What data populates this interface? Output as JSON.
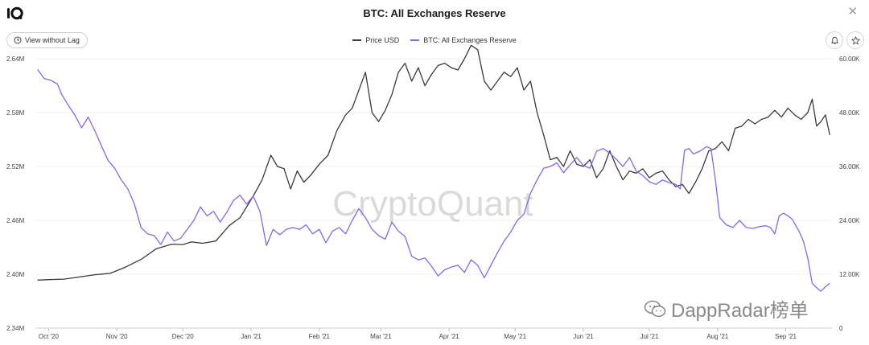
{
  "window": {
    "title": "BTC: All Exchanges Reserve",
    "close_glyph": "✕",
    "logo_icon": "cryptoquant-logo-icon"
  },
  "toolbar": {
    "lag_label": "View without Lag",
    "lag_icon": "clock-icon",
    "bell_icon": "bell-icon",
    "star_icon": "star-icon"
  },
  "watermark": {
    "main": "CryptoQuant",
    "secondary": "DappRadar榜单",
    "secondary_icon": "wechat-icon"
  },
  "chart_data": {
    "type": "line",
    "title": "BTC: All Exchanges Reserve",
    "x_tick_labels": [
      "Oct '20",
      "Nov '20",
      "Dec '20",
      "Jan '21",
      "Feb '21",
      "Mar '21",
      "Apr '21",
      "May '21",
      "Jun '21",
      "Jul '21",
      "Aug '21",
      "Sep '21"
    ],
    "x_ticks_day_index": [
      0,
      31,
      61,
      92,
      123,
      151,
      182,
      212,
      243,
      273,
      304,
      335
    ],
    "x_range_day_index": [
      -6,
      356
    ],
    "left_axis": {
      "ylim": [
        2340000,
        2640000
      ],
      "ticks": [
        2340000,
        2400000,
        2460000,
        2520000,
        2580000,
        2640000
      ],
      "tick_labels": [
        "2.34M",
        "2.40M",
        "2.46M",
        "2.52M",
        "2.58M",
        "2.64M"
      ]
    },
    "right_axis": {
      "ylim": [
        0,
        60000
      ],
      "ticks": [
        0,
        12000,
        24000,
        36000,
        48000,
        60000
      ],
      "tick_labels": [
        "0",
        "12.00K",
        "24.00K",
        "36.00K",
        "48.00K",
        "60.00K"
      ]
    },
    "grid": true,
    "legend_position": "top-center",
    "series": [
      {
        "name": "Price USD",
        "axis": "right",
        "color": "#3a3a3a",
        "points": [
          [
            -5,
            10700
          ],
          [
            0,
            10800
          ],
          [
            7,
            10900
          ],
          [
            14,
            11400
          ],
          [
            21,
            11900
          ],
          [
            28,
            12200
          ],
          [
            35,
            13600
          ],
          [
            42,
            15300
          ],
          [
            49,
            17700
          ],
          [
            56,
            18700
          ],
          [
            61,
            18600
          ],
          [
            65,
            19200
          ],
          [
            70,
            18900
          ],
          [
            76,
            19400
          ],
          [
            82,
            22800
          ],
          [
            87,
            24600
          ],
          [
            90,
            27000
          ],
          [
            93,
            29400
          ],
          [
            97,
            33000
          ],
          [
            101,
            38500
          ],
          [
            104,
            36000
          ],
          [
            107,
            35500
          ],
          [
            110,
            31000
          ],
          [
            113,
            35000
          ],
          [
            116,
            32500
          ],
          [
            119,
            34000
          ],
          [
            123,
            36500
          ],
          [
            127,
            38500
          ],
          [
            131,
            44000
          ],
          [
            135,
            47500
          ],
          [
            138,
            49000
          ],
          [
            141,
            53000
          ],
          [
            144,
            57000
          ],
          [
            147,
            48000
          ],
          [
            150,
            46000
          ],
          [
            153,
            48500
          ],
          [
            156,
            52000
          ],
          [
            159,
            57000
          ],
          [
            162,
            59000
          ],
          [
            165,
            55000
          ],
          [
            168,
            58000
          ],
          [
            171,
            54000
          ],
          [
            174,
            56500
          ],
          [
            177,
            58500
          ],
          [
            180,
            59000
          ],
          [
            183,
            58000
          ],
          [
            186,
            57500
          ],
          [
            189,
            60000
          ],
          [
            192,
            63000
          ],
          [
            195,
            62000
          ],
          [
            198,
            55000
          ],
          [
            201,
            53000
          ],
          [
            204,
            55000
          ],
          [
            207,
            57000
          ],
          [
            210,
            56000
          ],
          [
            213,
            58000
          ],
          [
            216,
            53000
          ],
          [
            219,
            55000
          ],
          [
            222,
            48000
          ],
          [
            225,
            43000
          ],
          [
            228,
            37500
          ],
          [
            231,
            38000
          ],
          [
            234,
            36000
          ],
          [
            237,
            39500
          ],
          [
            240,
            36500
          ],
          [
            243,
            36000
          ],
          [
            246,
            37500
          ],
          [
            249,
            33500
          ],
          [
            252,
            35500
          ],
          [
            255,
            39500
          ],
          [
            258,
            36000
          ],
          [
            261,
            33000
          ],
          [
            264,
            35000
          ],
          [
            267,
            34500
          ],
          [
            270,
            35500
          ],
          [
            273,
            33500
          ],
          [
            276,
            34500
          ],
          [
            279,
            35000
          ],
          [
            282,
            33000
          ],
          [
            285,
            31500
          ],
          [
            288,
            32000
          ],
          [
            291,
            30000
          ],
          [
            294,
            32500
          ],
          [
            297,
            35500
          ],
          [
            300,
            39500
          ],
          [
            303,
            40000
          ],
          [
            306,
            41500
          ],
          [
            309,
            39500
          ],
          [
            312,
            44500
          ],
          [
            315,
            45000
          ],
          [
            318,
            46500
          ],
          [
            321,
            45500
          ],
          [
            324,
            46500
          ],
          [
            327,
            47000
          ],
          [
            330,
            48500
          ],
          [
            333,
            47000
          ],
          [
            336,
            49000
          ],
          [
            339,
            47500
          ],
          [
            342,
            46500
          ],
          [
            345,
            48000
          ],
          [
            347,
            51000
          ],
          [
            349,
            45000
          ],
          [
            351,
            46000
          ],
          [
            353,
            47500
          ],
          [
            355,
            43000
          ]
        ]
      },
      {
        "name": "BTC: All Exchanges Reserve",
        "axis": "left",
        "color": "#7b6cf0",
        "points": [
          [
            -5,
            2628000
          ],
          [
            -2,
            2618000
          ],
          [
            1,
            2616000
          ],
          [
            4,
            2612000
          ],
          [
            6,
            2600000
          ],
          [
            9,
            2588000
          ],
          [
            12,
            2577000
          ],
          [
            15,
            2563000
          ],
          [
            18,
            2575000
          ],
          [
            21,
            2560000
          ],
          [
            24,
            2543000
          ],
          [
            27,
            2527000
          ],
          [
            30,
            2518000
          ],
          [
            33,
            2505000
          ],
          [
            36,
            2495000
          ],
          [
            39,
            2478000
          ],
          [
            42,
            2452000
          ],
          [
            45,
            2445000
          ],
          [
            48,
            2443000
          ],
          [
            51,
            2433000
          ],
          [
            54,
            2447000
          ],
          [
            57,
            2437000
          ],
          [
            60,
            2440000
          ],
          [
            63,
            2450000
          ],
          [
            66,
            2460000
          ],
          [
            69,
            2475000
          ],
          [
            72,
            2465000
          ],
          [
            75,
            2470000
          ],
          [
            78,
            2458000
          ],
          [
            81,
            2469000
          ],
          [
            84,
            2482000
          ],
          [
            87,
            2488000
          ],
          [
            90,
            2478000
          ],
          [
            93,
            2487000
          ],
          [
            96,
            2470000
          ],
          [
            99,
            2432000
          ],
          [
            102,
            2450000
          ],
          [
            105,
            2444000
          ],
          [
            108,
            2450000
          ],
          [
            111,
            2452000
          ],
          [
            114,
            2450000
          ],
          [
            117,
            2455000
          ],
          [
            120,
            2445000
          ],
          [
            123,
            2450000
          ],
          [
            126,
            2435000
          ],
          [
            129,
            2448000
          ],
          [
            132,
            2452000
          ],
          [
            135,
            2445000
          ],
          [
            138,
            2460000
          ],
          [
            141,
            2473000
          ],
          [
            144,
            2463000
          ],
          [
            147,
            2450000
          ],
          [
            150,
            2443000
          ],
          [
            153,
            2439000
          ],
          [
            156,
            2458000
          ],
          [
            159,
            2448000
          ],
          [
            162,
            2442000
          ],
          [
            165,
            2420000
          ],
          [
            168,
            2416000
          ],
          [
            171,
            2418000
          ],
          [
            174,
            2409000
          ],
          [
            177,
            2398000
          ],
          [
            180,
            2405000
          ],
          [
            183,
            2408000
          ],
          [
            186,
            2410000
          ],
          [
            189,
            2402000
          ],
          [
            192,
            2416000
          ],
          [
            195,
            2410000
          ],
          [
            198,
            2396000
          ],
          [
            201,
            2410000
          ],
          [
            204,
            2424000
          ],
          [
            207,
            2437000
          ],
          [
            210,
            2447000
          ],
          [
            213,
            2460000
          ],
          [
            216,
            2467000
          ],
          [
            219,
            2490000
          ],
          [
            222,
            2505000
          ],
          [
            225,
            2518000
          ],
          [
            228,
            2520000
          ],
          [
            231,
            2524000
          ],
          [
            234,
            2513000
          ],
          [
            237,
            2522000
          ],
          [
            240,
            2530000
          ],
          [
            243,
            2521000
          ],
          [
            246,
            2518000
          ],
          [
            249,
            2537000
          ],
          [
            252,
            2540000
          ],
          [
            255,
            2535000
          ],
          [
            258,
            2528000
          ],
          [
            261,
            2520000
          ],
          [
            264,
            2530000
          ],
          [
            267,
            2515000
          ],
          [
            270,
            2510000
          ],
          [
            273,
            2503000
          ],
          [
            276,
            2500000
          ],
          [
            279,
            2505000
          ],
          [
            282,
            2502000
          ],
          [
            285,
            2500000
          ],
          [
            287,
            2495000
          ],
          [
            289,
            2538000
          ],
          [
            291,
            2540000
          ],
          [
            293,
            2534000
          ],
          [
            296,
            2537000
          ],
          [
            299,
            2542000
          ],
          [
            301,
            2540000
          ],
          [
            303,
            2505000
          ],
          [
            305,
            2463000
          ],
          [
            308,
            2455000
          ],
          [
            311,
            2452000
          ],
          [
            314,
            2460000
          ],
          [
            317,
            2452000
          ],
          [
            320,
            2451000
          ],
          [
            323,
            2453000
          ],
          [
            326,
            2454000
          ],
          [
            328,
            2452000
          ],
          [
            330,
            2445000
          ],
          [
            332,
            2465000
          ],
          [
            334,
            2468000
          ],
          [
            336,
            2465000
          ],
          [
            338,
            2461000
          ],
          [
            341,
            2448000
          ],
          [
            343,
            2437000
          ],
          [
            345,
            2418000
          ],
          [
            347,
            2390000
          ],
          [
            349,
            2385000
          ],
          [
            351,
            2381000
          ],
          [
            353,
            2386000
          ],
          [
            355,
            2390000
          ]
        ]
      }
    ]
  }
}
